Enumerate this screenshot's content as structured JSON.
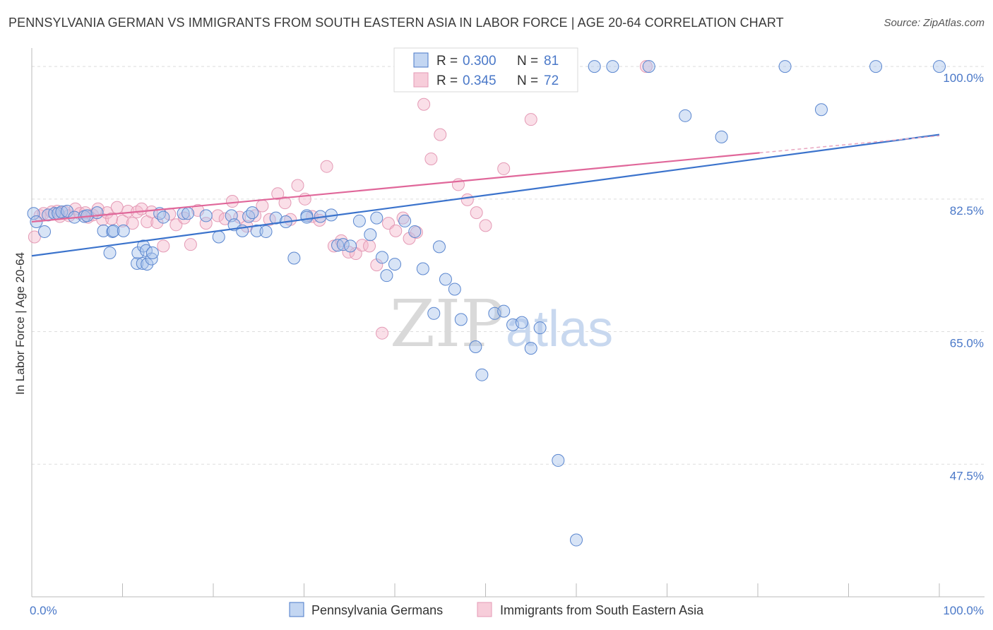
{
  "title": "PENNSYLVANIA GERMAN VS IMMIGRANTS FROM SOUTH EASTERN ASIA IN LABOR FORCE | AGE 20-64 CORRELATION CHART",
  "source": "Source: ZipAtlas.com",
  "watermark": {
    "zip": "ZIP",
    "atlas": "atlas"
  },
  "colors": {
    "blue": "#4a78c8",
    "blue_fill": "#a9c4ec",
    "blue_line": "#3b73cc",
    "pink_fill": "#f3b8cb",
    "pink_line": "#e0679a",
    "grid": "#dddddd"
  },
  "chart_data": {
    "type": "scatter",
    "ylabel": "In Labor Force | Age 20-64",
    "xlim": [
      0,
      100
    ],
    "ylim": [
      30,
      101.5
    ],
    "x_tick_labels": [
      "0.0%",
      "100.0%"
    ],
    "y_ticks": [
      {
        "value": 100,
        "label": "100.0%"
      },
      {
        "value": 82.5,
        "label": "82.5%"
      },
      {
        "value": 65,
        "label": "65.0%"
      },
      {
        "value": 47.5,
        "label": "47.5%"
      }
    ],
    "legend": [
      {
        "r_label": "R =",
        "r": "0.300",
        "n_label": "N =",
        "n": "81"
      },
      {
        "r_label": "R =",
        "r": "0.345",
        "n_label": "N =",
        "n": "72"
      }
    ],
    "series": [
      {
        "name": "Pennsylvania Germans",
        "color": "blue",
        "trend": {
          "x0": 0,
          "y0": 75.0,
          "x1": 100,
          "y1": 91.0
        },
        "points": [
          [
            0.2,
            80.6
          ],
          [
            0.5,
            79.5
          ],
          [
            1.4,
            78.2
          ],
          [
            1.8,
            80.4
          ],
          [
            2.5,
            80.6
          ],
          [
            2.9,
            80.6
          ],
          [
            3.3,
            80.8
          ],
          [
            3.9,
            80.9
          ],
          [
            4.7,
            80.1
          ],
          [
            5.8,
            80.2
          ],
          [
            6.1,
            80.3
          ],
          [
            7.2,
            80.7
          ],
          [
            7.9,
            78.3
          ],
          [
            8.6,
            75.4
          ],
          [
            8.9,
            78.2
          ],
          [
            9.0,
            78.3
          ],
          [
            10.1,
            78.3
          ],
          [
            11.6,
            74.0
          ],
          [
            11.7,
            75.4
          ],
          [
            12.2,
            74.0
          ],
          [
            12.3,
            76.3
          ],
          [
            12.6,
            75.7
          ],
          [
            12.7,
            73.9
          ],
          [
            13.2,
            74.6
          ],
          [
            13.3,
            75.4
          ],
          [
            14.1,
            80.6
          ],
          [
            14.5,
            80.1
          ],
          [
            16.7,
            80.6
          ],
          [
            17.2,
            80.6
          ],
          [
            19.2,
            80.3
          ],
          [
            20.6,
            77.5
          ],
          [
            22.0,
            80.3
          ],
          [
            22.3,
            79.1
          ],
          [
            23.2,
            78.3
          ],
          [
            23.9,
            80.2
          ],
          [
            24.3,
            80.7
          ],
          [
            24.8,
            78.3
          ],
          [
            25.8,
            78.2
          ],
          [
            26.9,
            80.0
          ],
          [
            28.0,
            79.5
          ],
          [
            28.9,
            74.7
          ],
          [
            30.3,
            80.3
          ],
          [
            30.3,
            80.1
          ],
          [
            31.8,
            80.2
          ],
          [
            33.0,
            80.4
          ],
          [
            33.7,
            76.4
          ],
          [
            34.3,
            76.5
          ],
          [
            35.1,
            76.3
          ],
          [
            36.1,
            79.6
          ],
          [
            37.3,
            77.8
          ],
          [
            38.0,
            80.0
          ],
          [
            38.6,
            74.8
          ],
          [
            39.1,
            72.4
          ],
          [
            40.0,
            73.9
          ],
          [
            41.1,
            79.6
          ],
          [
            42.2,
            78.2
          ],
          [
            43.1,
            73.3
          ],
          [
            44.3,
            67.4
          ],
          [
            44.9,
            76.2
          ],
          [
            45.6,
            71.9
          ],
          [
            46.6,
            70.6
          ],
          [
            47.3,
            66.6
          ],
          [
            48.9,
            63.0
          ],
          [
            49.6,
            59.3
          ],
          [
            51.0,
            67.4
          ],
          [
            52.0,
            67.7
          ],
          [
            53.0,
            65.9
          ],
          [
            54.0,
            66.2
          ],
          [
            55.0,
            62.8
          ],
          [
            56.0,
            65.5
          ],
          [
            58.0,
            48.0
          ],
          [
            60.0,
            37.5
          ],
          [
            62.0,
            100
          ],
          [
            64.0,
            100
          ],
          [
            68.0,
            100
          ],
          [
            72.0,
            93.5
          ],
          [
            76.0,
            90.7
          ],
          [
            83.0,
            100
          ],
          [
            87.0,
            94.3
          ],
          [
            93.0,
            100
          ],
          [
            100.0,
            100
          ]
        ]
      },
      {
        "name": "Immigrants from South Eastern Asia",
        "color": "pink",
        "trend": {
          "x0": 0,
          "y0": 79.5,
          "x1": 80.2,
          "y1": 88.6
        },
        "points": [
          [
            0.3,
            77.5
          ],
          [
            0.9,
            80.3
          ],
          [
            1.3,
            80.6
          ],
          [
            2.2,
            80.8
          ],
          [
            2.8,
            80.9
          ],
          [
            3.1,
            80.2
          ],
          [
            3.6,
            80.8
          ],
          [
            4.1,
            80.3
          ],
          [
            4.8,
            81.2
          ],
          [
            5.3,
            80.6
          ],
          [
            5.9,
            80.7
          ],
          [
            6.2,
            80.1
          ],
          [
            6.7,
            80.4
          ],
          [
            7.3,
            81.2
          ],
          [
            7.8,
            79.8
          ],
          [
            8.3,
            80.7
          ],
          [
            8.8,
            79.9
          ],
          [
            9.4,
            81.4
          ],
          [
            10.0,
            79.6
          ],
          [
            10.6,
            80.9
          ],
          [
            11.1,
            79.3
          ],
          [
            11.6,
            80.8
          ],
          [
            12.1,
            81.2
          ],
          [
            12.7,
            79.5
          ],
          [
            13.2,
            80.8
          ],
          [
            13.8,
            79.4
          ],
          [
            14.5,
            76.3
          ],
          [
            15.2,
            80.5
          ],
          [
            15.9,
            79.1
          ],
          [
            16.8,
            80.0
          ],
          [
            17.5,
            76.5
          ],
          [
            18.3,
            81.0
          ],
          [
            19.2,
            79.3
          ],
          [
            20.5,
            80.3
          ],
          [
            21.3,
            79.9
          ],
          [
            22.1,
            82.2
          ],
          [
            22.9,
            80.1
          ],
          [
            23.7,
            78.9
          ],
          [
            24.6,
            80.3
          ],
          [
            25.4,
            81.6
          ],
          [
            26.2,
            79.8
          ],
          [
            27.1,
            83.2
          ],
          [
            27.9,
            82.0
          ],
          [
            28.5,
            79.8
          ],
          [
            29.3,
            84.3
          ],
          [
            30.1,
            82.5
          ],
          [
            30.9,
            80.2
          ],
          [
            31.7,
            79.7
          ],
          [
            32.5,
            86.8
          ],
          [
            33.3,
            76.3
          ],
          [
            34.1,
            77.0
          ],
          [
            34.9,
            75.5
          ],
          [
            35.7,
            75.3
          ],
          [
            36.4,
            76.4
          ],
          [
            37.2,
            76.3
          ],
          [
            38.0,
            73.8
          ],
          [
            38.6,
            64.8
          ],
          [
            39.3,
            79.3
          ],
          [
            40.1,
            78.3
          ],
          [
            40.9,
            80.0
          ],
          [
            41.6,
            77.3
          ],
          [
            42.4,
            78.1
          ],
          [
            43.2,
            95.0
          ],
          [
            44.0,
            87.8
          ],
          [
            45.0,
            91.0
          ],
          [
            47.0,
            84.4
          ],
          [
            48.0,
            82.4
          ],
          [
            49.0,
            80.7
          ],
          [
            50.0,
            79.0
          ],
          [
            52.0,
            86.5
          ],
          [
            55.0,
            93.0
          ],
          [
            67.7,
            100
          ]
        ]
      }
    ]
  },
  "bottom_legend": [
    "Pennsylvania Germans",
    "Immigrants from South Eastern Asia"
  ]
}
